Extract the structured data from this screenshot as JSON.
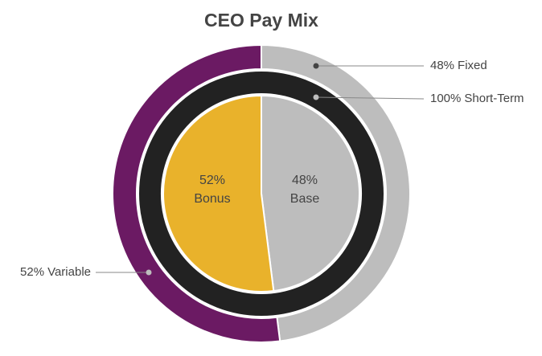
{
  "chart_data": {
    "type": "pie",
    "title": "CEO Pay Mix",
    "rings": [
      {
        "categories": [
          "Base",
          "Bonus"
        ],
        "values": [
          48,
          52
        ],
        "value_labels": [
          "48%",
          "52%"
        ],
        "colors": [
          "#bdbdbd",
          "#e9b22b"
        ]
      },
      {
        "categories": [
          "Short-Term"
        ],
        "values": [
          100
        ],
        "value_labels": [
          "100%"
        ],
        "colors": [
          "#222222"
        ]
      },
      {
        "categories": [
          "Fixed",
          "Variable"
        ],
        "values": [
          48,
          52
        ],
        "value_labels": [
          "48%",
          "52%"
        ],
        "colors": [
          "#bdbdbd",
          "#6b1a63"
        ]
      }
    ]
  }
}
